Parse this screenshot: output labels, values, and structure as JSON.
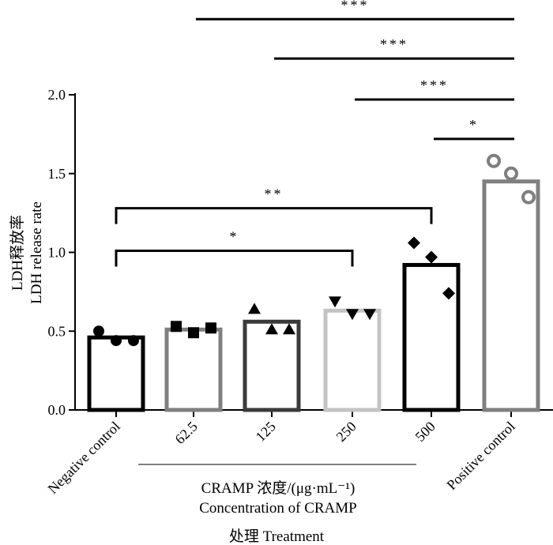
{
  "chart_data": {
    "type": "bar",
    "title": "",
    "ylabel": [
      "LDH释放率",
      "LDH release rate"
    ],
    "xlabel": "处理 Treatment",
    "group_label": [
      "CRAMP 浓度/(μg·mL⁻¹)",
      "Concentration of CRAMP"
    ],
    "ylim": [
      0,
      2.0
    ],
    "yticks": [
      0.0,
      0.5,
      1.0,
      1.5,
      2.0
    ],
    "ytick_labels": [
      "0.0",
      "0.5",
      "1.0",
      "1.5",
      "2.0"
    ],
    "categories": [
      "Negative control",
      "62.5",
      "125",
      "250",
      "500",
      "Positive control"
    ],
    "values": [
      0.46,
      0.51,
      0.56,
      0.63,
      0.92,
      1.45
    ],
    "bar_colors": [
      "#000000",
      "#7f7f7f",
      "#3a3a3a",
      "#c3c3c3",
      "#000000",
      "#7f7f7f"
    ],
    "points": [
      {
        "marker": "circle",
        "filled": true,
        "values": [
          0.5,
          0.44,
          0.44
        ]
      },
      {
        "marker": "square",
        "filled": true,
        "values": [
          0.53,
          0.49,
          0.52
        ]
      },
      {
        "marker": "triangle-up",
        "filled": true,
        "values": [
          0.64,
          0.51,
          0.51
        ]
      },
      {
        "marker": "triangle-down",
        "filled": true,
        "values": [
          0.69,
          0.61,
          0.61
        ]
      },
      {
        "marker": "diamond",
        "filled": true,
        "values": [
          1.06,
          0.97,
          0.74
        ]
      },
      {
        "marker": "circle",
        "filled": false,
        "values": [
          1.58,
          1.5,
          1.35
        ]
      }
    ],
    "significance": [
      {
        "from": 1,
        "to": 5,
        "label": "***",
        "bar_y": 2.48,
        "style": "line"
      },
      {
        "from": 2,
        "to": 5,
        "label": "***",
        "bar_y": 2.23,
        "style": "line"
      },
      {
        "from": 3,
        "to": 5,
        "label": "***",
        "bar_y": 1.97,
        "style": "line"
      },
      {
        "from": 4,
        "to": 5,
        "label": "*",
        "bar_y": 1.72,
        "style": "line"
      },
      {
        "from": 0,
        "to": 4,
        "label": "**",
        "bar_y": 1.28,
        "style": "bracket"
      },
      {
        "from": 0,
        "to": 3,
        "label": "*",
        "bar_y": 1.01,
        "style": "bracket"
      }
    ]
  }
}
